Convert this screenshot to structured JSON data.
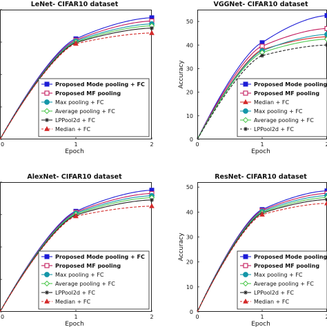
{
  "chart_data": [
    {
      "type": "line",
      "title": "LeNet- CIFAR10 dataset",
      "xlabel": "Epoch",
      "ylabel": "",
      "x": [
        0,
        1,
        2
      ],
      "xlim": [
        0,
        2
      ],
      "ylim": [
        10,
        50
      ],
      "xticks": [
        0,
        1,
        2
      ],
      "yticks": [],
      "legend_position": "lower-right",
      "series": [
        {
          "name": "Proposed Mode pooling + FC",
          "values": [
            10,
            41.0,
            47.5
          ],
          "color": "#1c1cd6",
          "marker": "square",
          "dash": "solid",
          "bold": true
        },
        {
          "name": "Proposed MF pooling",
          "values": [
            10,
            40.6,
            46.5
          ],
          "color": "#c2185b",
          "marker": "open-square",
          "dash": "solid",
          "bold": true
        },
        {
          "name": "Max pooling + FC",
          "values": [
            10,
            40.3,
            45.6
          ],
          "color": "#1496a8",
          "marker": "circle",
          "dash": "solid",
          "bold": false
        },
        {
          "name": "Average pooling + FC",
          "values": [
            10,
            40.0,
            45.0
          ],
          "color": "#4fc84f",
          "marker": "diamond",
          "dash": "solid",
          "bold": false
        },
        {
          "name": "LPPool2d + FC",
          "values": [
            10,
            39.8,
            44.3
          ],
          "color": "#222222",
          "marker": "star",
          "dash": "solid",
          "bold": false
        },
        {
          "name": "Median + FC",
          "values": [
            10,
            39.5,
            42.8
          ],
          "color": "#d42a2a",
          "marker": "triangle",
          "dash": "dashed",
          "bold": false
        }
      ]
    },
    {
      "type": "line",
      "title": "VGGNet- CIFAR10 dataset",
      "xlabel": "Epoch",
      "ylabel": "Accuracy",
      "x": [
        0,
        1,
        2
      ],
      "xlim": [
        0,
        2
      ],
      "ylim": [
        0,
        55
      ],
      "xticks": [
        0,
        1,
        2
      ],
      "yticks": [
        0,
        10,
        20,
        30,
        40,
        50
      ],
      "legend_position": "lower-right",
      "series": [
        {
          "name": "Proposed Mode pooling + FC",
          "values": [
            0,
            41.0,
            52.5
          ],
          "color": "#1c1cd6",
          "marker": "square",
          "dash": "solid",
          "bold": true
        },
        {
          "name": "Proposed MF pooling",
          "values": [
            0,
            39.5,
            47.0
          ],
          "color": "#c2185b",
          "marker": "open-square",
          "dash": "solid",
          "bold": true
        },
        {
          "name": "Median + FC",
          "values": [
            0,
            38.0,
            43.5
          ],
          "color": "#d42a2a",
          "marker": "triangle",
          "dash": "solid",
          "bold": false
        },
        {
          "name": "Max pooling + FC",
          "values": [
            0,
            37.5,
            44.5
          ],
          "color": "#1496a8",
          "marker": "circle",
          "dash": "solid",
          "bold": false
        },
        {
          "name": "Average pooling + FC",
          "values": [
            0,
            36.8,
            42.5
          ],
          "color": "#4fc84f",
          "marker": "diamond",
          "dash": "solid",
          "bold": false
        },
        {
          "name": "LPPool2d + FC",
          "values": [
            0,
            35.5,
            40.0
          ],
          "color": "#222222",
          "marker": "star",
          "dash": "dashed",
          "bold": false
        }
      ]
    },
    {
      "type": "line",
      "title": "AlexNet- CIFAR10 dataset",
      "xlabel": "Epoch",
      "ylabel": "",
      "x": [
        0,
        1,
        2
      ],
      "xlim": [
        0,
        2
      ],
      "ylim": [
        10,
        50
      ],
      "xticks": [
        0,
        1,
        2
      ],
      "yticks": [],
      "legend_position": "lower-right",
      "series": [
        {
          "name": "Proposed Mode pooling + FC",
          "values": [
            10,
            41.0,
            47.5
          ],
          "color": "#1c1cd6",
          "marker": "square",
          "dash": "solid",
          "bold": true
        },
        {
          "name": "Proposed MF pooling",
          "values": [
            10,
            40.7,
            46.5
          ],
          "color": "#c2185b",
          "marker": "open-square",
          "dash": "solid",
          "bold": true
        },
        {
          "name": "Max pooling + FC",
          "values": [
            10,
            40.4,
            45.8
          ],
          "color": "#1496a8",
          "marker": "circle",
          "dash": "solid",
          "bold": false
        },
        {
          "name": "Average pooling + FC",
          "values": [
            10,
            40.1,
            45.2
          ],
          "color": "#4fc84f",
          "marker": "diamond",
          "dash": "solid",
          "bold": false
        },
        {
          "name": "LPPool2d + FC",
          "values": [
            10,
            39.8,
            44.5
          ],
          "color": "#222222",
          "marker": "star",
          "dash": "solid",
          "bold": false
        },
        {
          "name": "Median + FC",
          "values": [
            10,
            39.5,
            42.6
          ],
          "color": "#d42a2a",
          "marker": "triangle",
          "dash": "dashed",
          "bold": false
        }
      ]
    },
    {
      "type": "line",
      "title": "ResNet- CIFAR10 dataset",
      "xlabel": "Epoch",
      "ylabel": "Accuracy",
      "x": [
        0,
        1,
        2
      ],
      "xlim": [
        0,
        2
      ],
      "ylim": [
        0,
        52
      ],
      "xticks": [
        0,
        1,
        2
      ],
      "yticks": [
        0,
        10,
        20,
        30,
        40,
        50
      ],
      "legend_position": "lower-right",
      "series": [
        {
          "name": "Proposed Mode pooling + FC",
          "values": [
            0,
            41.0,
            48.5
          ],
          "color": "#1c1cd6",
          "marker": "square",
          "dash": "solid",
          "bold": true
        },
        {
          "name": "Proposed MF pooling",
          "values": [
            0,
            40.6,
            47.5
          ],
          "color": "#c2185b",
          "marker": "open-square",
          "dash": "solid",
          "bold": true
        },
        {
          "name": "Max pooling + FC",
          "values": [
            0,
            40.2,
            46.6
          ],
          "color": "#1496a8",
          "marker": "circle",
          "dash": "solid",
          "bold": false
        },
        {
          "name": "Average pooling + FC",
          "values": [
            0,
            39.8,
            45.8
          ],
          "color": "#4fc84f",
          "marker": "diamond",
          "dash": "solid",
          "bold": false
        },
        {
          "name": "LPPool2d + FC",
          "values": [
            0,
            39.5,
            45.0
          ],
          "color": "#222222",
          "marker": "star",
          "dash": "solid",
          "bold": false
        },
        {
          "name": "Median + FC",
          "values": [
            0,
            39.0,
            43.5
          ],
          "color": "#d42a2a",
          "marker": "triangle",
          "dash": "dashed",
          "bold": false
        }
      ]
    }
  ]
}
